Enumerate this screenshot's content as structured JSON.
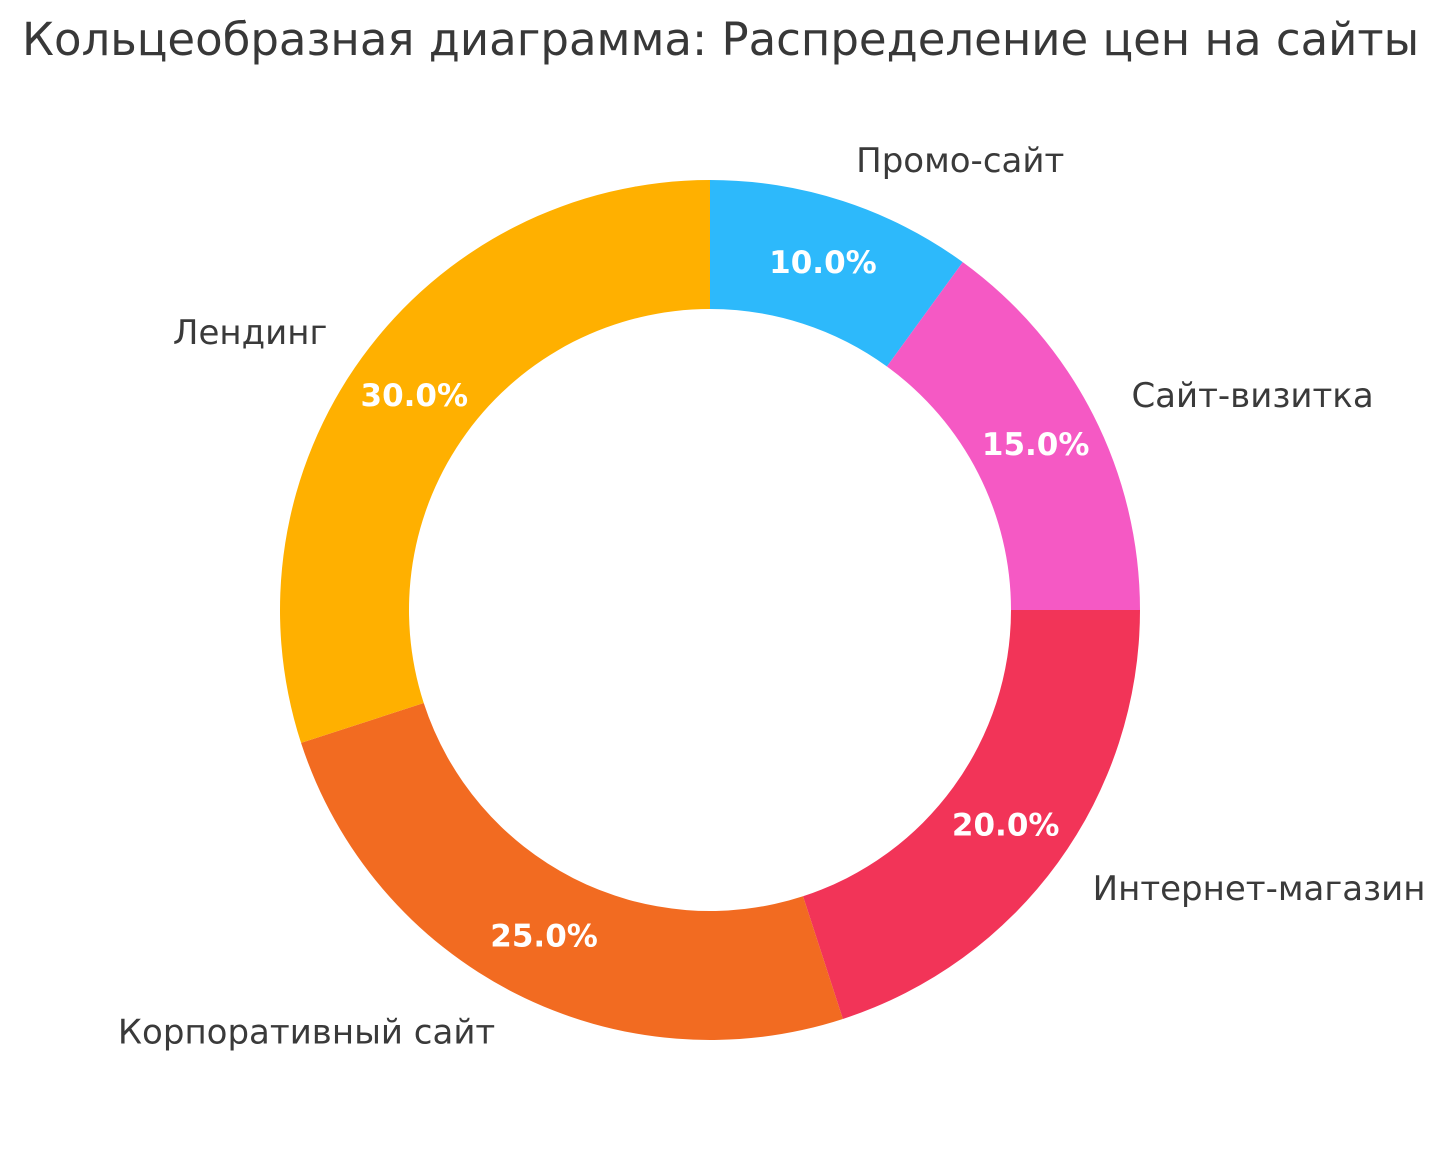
{
  "chart_data": {
    "type": "pie",
    "variant": "donut",
    "title": "Кольцеобразная диаграмма: Распределение цен на сайты",
    "categories": [
      "Промо-сайт",
      "Сайт-визитка",
      "Интернет-магазин",
      "Корпоративный сайт",
      "Лендинг"
    ],
    "values": [
      10.0,
      15.0,
      20.0,
      25.0,
      30.0
    ],
    "value_labels": [
      "10.0%",
      "15.0%",
      "20.0%",
      "25.0%",
      "30.0%"
    ],
    "colors": [
      "#2DB9FB",
      "#F559C4",
      "#F23458",
      "#F26B21",
      "#FFB000"
    ],
    "start_angle": "top",
    "direction": "clockwise",
    "donut_hole_ratio": 0.7,
    "label_distance_ratio": 1.1,
    "pct_distance_ratio": 0.85,
    "legend": "none",
    "grid": "off",
    "background_color": "#FFFFFF",
    "title_color": "#383838",
    "label_color": "#3A3A3A",
    "pct_label_color": "#FFFFFF"
  }
}
